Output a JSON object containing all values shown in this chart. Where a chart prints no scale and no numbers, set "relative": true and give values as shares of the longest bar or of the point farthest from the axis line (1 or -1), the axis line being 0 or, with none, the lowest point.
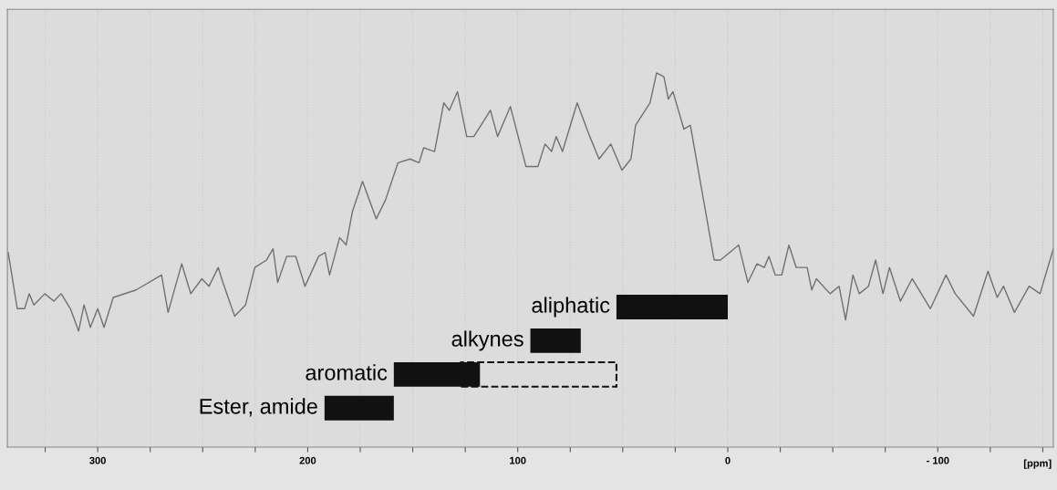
{
  "chart_data": {
    "type": "line",
    "relative": true,
    "xlabel": "[ppm]",
    "x": [
      342.6,
      338.3,
      334.8,
      332.6,
      330.4,
      325.2,
      320.9,
      317.4,
      313.0,
      309.1,
      306.5,
      303.5,
      300.0,
      297.0,
      292.6,
      281.7,
      269.6,
      266.5,
      260.0,
      255.7,
      250.4,
      247.0,
      242.6,
      240.4,
      234.8,
      229.6,
      225.2,
      219.6,
      216.5,
      214.3,
      210.0,
      205.7,
      201.3,
      194.8,
      191.7,
      189.6,
      184.8,
      181.7,
      178.7,
      173.9,
      167.4,
      163.0,
      157.0,
      151.3,
      147.0,
      144.8,
      139.6,
      135.2,
      132.6,
      128.7,
      124.3,
      120.9,
      113.0,
      109.6,
      103.5,
      96.1,
      90.4,
      87.0,
      83.9,
      81.7,
      78.7,
      71.7,
      65.7,
      61.3,
      55.7,
      50.4,
      46.1,
      43.9,
      37.0,
      33.9,
      30.4,
      28.3,
      26.1,
      20.9,
      17.8,
      6.5,
      3.5,
      -0.9,
      -5.2,
      -9.6,
      -13.9,
      -17.4,
      -19.6,
      -22.6,
      -25.7,
      -29.1,
      -32.6,
      -37.8,
      -40.0,
      -42.2,
      -48.7,
      -53.0,
      -56.1,
      -59.6,
      -62.6,
      -67.0,
      -70.4,
      -73.9,
      -77.0,
      -82.2,
      -87.8,
      -96.5,
      -103.9,
      -108.3,
      -117.0,
      -123.9,
      -128.3,
      -131.3,
      -136.5,
      -143.5,
      -148.7,
      -155.0
    ],
    "series": [
      {
        "color": "#707070",
        "values": [
          0.52,
          0.37,
          0.37,
          0.41,
          0.38,
          0.41,
          0.39,
          0.41,
          0.37,
          0.31,
          0.38,
          0.32,
          0.37,
          0.32,
          0.4,
          0.42,
          0.46,
          0.36,
          0.49,
          0.41,
          0.45,
          0.43,
          0.48,
          0.44,
          0.35,
          0.38,
          0.48,
          0.5,
          0.53,
          0.44,
          0.51,
          0.51,
          0.43,
          0.51,
          0.52,
          0.46,
          0.56,
          0.54,
          0.63,
          0.71,
          0.61,
          0.66,
          0.76,
          0.77,
          0.76,
          0.8,
          0.79,
          0.92,
          0.9,
          0.95,
          0.83,
          0.83,
          0.9,
          0.83,
          0.91,
          0.75,
          0.75,
          0.81,
          0.79,
          0.83,
          0.79,
          0.92,
          0.83,
          0.77,
          0.81,
          0.74,
          0.77,
          0.86,
          0.92,
          1.0,
          0.99,
          0.93,
          0.95,
          0.85,
          0.86,
          0.5,
          0.5,
          0.52,
          0.54,
          0.44,
          0.49,
          0.48,
          0.51,
          0.46,
          0.46,
          0.54,
          0.48,
          0.48,
          0.42,
          0.45,
          0.41,
          0.43,
          0.34,
          0.46,
          0.41,
          0.43,
          0.5,
          0.41,
          0.48,
          0.39,
          0.45,
          0.37,
          0.46,
          0.41,
          0.35,
          0.47,
          0.4,
          0.43,
          0.36,
          0.43,
          0.41,
          0.53
        ]
      }
    ],
    "xlim": [
      343,
      -155
    ],
    "xticks": [
      300,
      200,
      100,
      0,
      {
        "value": -100,
        "label": "- 100"
      },
      {
        "value": 325,
        "label": null
      },
      {
        "value": 275,
        "label": null
      },
      {
        "value": 250,
        "label": null
      },
      {
        "value": 225,
        "label": null
      },
      {
        "value": 175,
        "label": null
      },
      {
        "value": 150,
        "label": null
      },
      {
        "value": 125,
        "label": null
      },
      {
        "value": 75,
        "label": null
      },
      {
        "value": 50,
        "label": null
      },
      {
        "value": 25,
        "label": null
      },
      {
        "value": -25,
        "label": null
      },
      {
        "value": -50,
        "label": null
      },
      {
        "value": -75,
        "label": null
      },
      {
        "value": -125,
        "label": null
      },
      {
        "value": -150,
        "label": null
      }
    ],
    "grid": "x",
    "bands": [
      {
        "axis": "x",
        "from": 53,
        "to": 0,
        "label": "aliphatic",
        "color": "#111111"
      },
      {
        "axis": "x",
        "from": 94,
        "to": 70,
        "label": "alkynes",
        "color": "#111111"
      },
      {
        "axis": "x",
        "from": 159,
        "to": 118,
        "label": "aromatic",
        "color": "#111111"
      },
      {
        "axis": "x",
        "from": 127,
        "to": 53,
        "color": "#111111"
      },
      {
        "axis": "x",
        "from": 192,
        "to": 159,
        "label": "Ester, amide",
        "color": "#111111"
      }
    ]
  }
}
